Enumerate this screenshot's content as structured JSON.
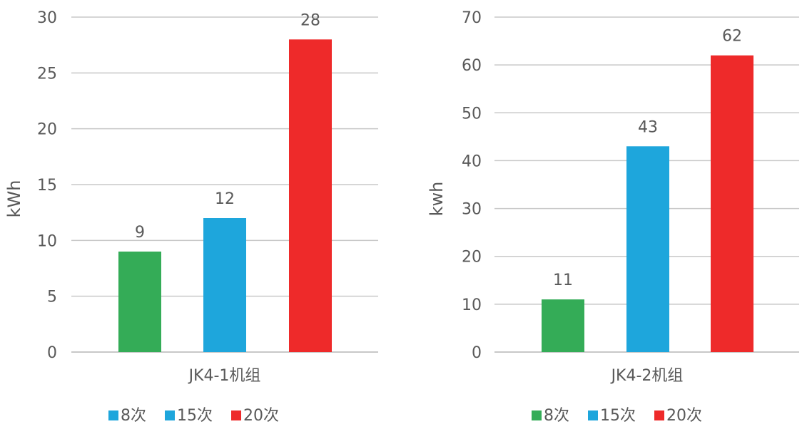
{
  "chart_data": [
    {
      "type": "bar",
      "categories": [
        "JK4-1机组"
      ],
      "series": [
        {
          "name": "8次",
          "values": [
            9
          ]
        },
        {
          "name": "15次",
          "values": [
            12
          ]
        },
        {
          "name": "20次",
          "values": [
            28
          ]
        }
      ],
      "ylabel": "kWh",
      "ylim": [
        0,
        30
      ],
      "yticks": [
        0,
        5,
        10,
        15,
        20,
        25,
        30
      ],
      "legend": "bottom",
      "grid": true
    },
    {
      "type": "bar",
      "categories": [
        "JK4-2机组"
      ],
      "series": [
        {
          "name": "8次",
          "values": [
            11
          ]
        },
        {
          "name": "15次",
          "values": [
            43
          ]
        },
        {
          "name": "20次",
          "values": [
            62
          ]
        }
      ],
      "ylabel": "kwh",
      "ylim": [
        0,
        70
      ],
      "yticks": [
        0,
        10,
        20,
        30,
        40,
        50,
        60,
        70
      ],
      "legend": "bottom",
      "grid": true
    }
  ],
  "colors": {
    "bars": [
      "#34ac57",
      "#1ea6dc",
      "#ee2a2a"
    ],
    "legend_swatches": [
      [
        "#1ea6dc",
        "#1ea6dc",
        "#ee2a2a"
      ],
      [
        "#34ac57",
        "#1ea6dc",
        "#ee2a2a"
      ]
    ],
    "grid": "#c8c8c8",
    "text": "#595959"
  }
}
